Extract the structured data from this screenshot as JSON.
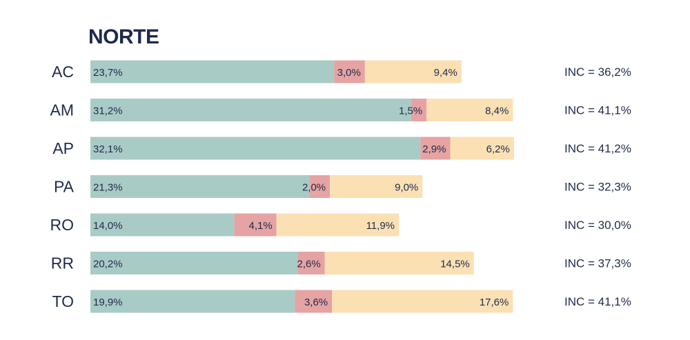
{
  "chart_data": {
    "type": "bar",
    "orientation": "horizontal",
    "stacked": true,
    "title": "NORTE",
    "categories": [
      "AC",
      "AM",
      "AP",
      "PA",
      "RO",
      "RR",
      "TO"
    ],
    "series": [
      {
        "color": "#a9cbc6",
        "values": [
          23.7,
          31.2,
          32.1,
          21.3,
          14.0,
          20.2,
          19.9
        ],
        "labels": [
          "23,7%",
          "31,2%",
          "32,1%",
          "21,3%",
          "14,0%",
          "20,2%",
          "19,9%"
        ]
      },
      {
        "color": "#e6a3a3",
        "values": [
          3.0,
          1.5,
          2.9,
          2.0,
          4.1,
          2.6,
          3.6
        ],
        "labels": [
          "3,0%",
          "1,5%",
          "2,9%",
          "2,0%",
          "4,1%",
          "2,6%",
          "3,6%"
        ]
      },
      {
        "color": "#fbe0b4",
        "values": [
          9.4,
          8.4,
          6.2,
          9.0,
          11.9,
          14.5,
          17.6
        ],
        "labels": [
          "9,4%",
          "8,4%",
          "6,2%",
          "9,0%",
          "11,9%",
          "14,5%",
          "17,6%"
        ]
      }
    ],
    "totals": [
      "INC = 36,2%",
      "INC = 41,1%",
      "INC = 41,2%",
      "INC = 32,3%",
      "INC = 30,0%",
      "INC = 37,3%",
      "INC = 41,1%"
    ],
    "xlim": [
      0,
      42
    ],
    "grid": false
  }
}
